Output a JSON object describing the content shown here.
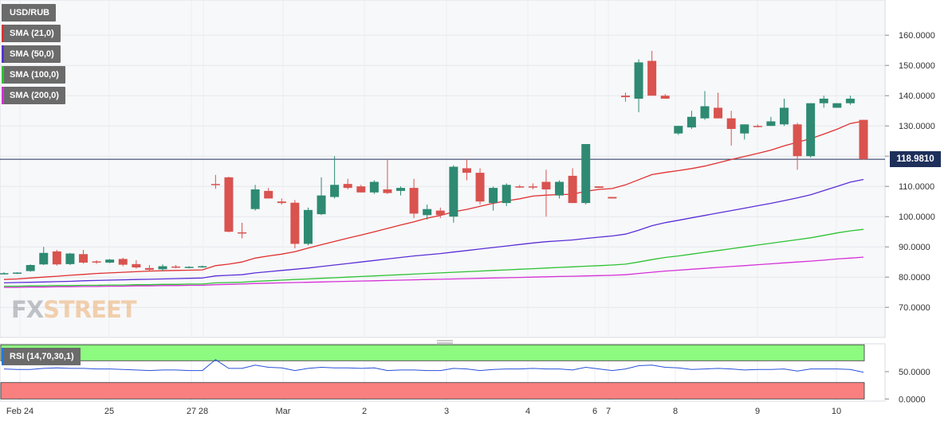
{
  "symbol": "USD/RUB",
  "legend": [
    {
      "label": "SMA (21,0)",
      "color": "#e03030"
    },
    {
      "label": "SMA (50,0)",
      "color": "#5a2fd6"
    },
    {
      "label": "SMA (100,0)",
      "color": "#2ec234"
    },
    {
      "label": "SMA (200,0)",
      "color": "#d630d6"
    }
  ],
  "last_price": "118.9810",
  "rsi_label": "RSI (14,70,30,1)",
  "watermark": {
    "fx": "FX",
    "street": "STREET"
  },
  "colors": {
    "up": "#2e8a72",
    "down": "#d9534f",
    "badge": "#1e2f5a",
    "rsi": "#2850d8",
    "overbought": "#8dfa80",
    "oversold": "#fa8080"
  },
  "chart_data": {
    "type": "candlestick",
    "symbol": "USD/RUB",
    "ylim": [
      62,
      170
    ],
    "y_ticks": [
      "160.0000",
      "150.0000",
      "140.0000",
      "130.0000",
      "120.0000",
      "110.0000",
      "100.0000",
      "90.0000",
      "80.0000",
      "70.0000"
    ],
    "x_labels": [
      "Feb 24",
      "25",
      "27",
      "28",
      "Mar",
      "2",
      "3",
      "4",
      "6",
      "7",
      "8",
      "9",
      "10"
    ],
    "ohlc": [
      [
        81.2,
        81.6,
        80.9,
        81.3
      ],
      [
        81.3,
        81.6,
        81.0,
        81.5
      ],
      [
        82.0,
        84.2,
        81.8,
        84.0
      ],
      [
        84.2,
        90.0,
        84.0,
        88.0
      ],
      [
        88.5,
        89.0,
        83.8,
        84.2
      ],
      [
        84.3,
        88.0,
        84.0,
        87.8
      ],
      [
        87.6,
        89.0,
        84.5,
        84.8
      ],
      [
        85.2,
        85.6,
        84.4,
        84.9
      ],
      [
        84.8,
        86.0,
        84.6,
        85.8
      ],
      [
        86.0,
        86.4,
        83.6,
        84.1
      ],
      [
        84.3,
        85.6,
        82.8,
        83.2
      ],
      [
        83.0,
        84.0,
        81.8,
        82.4
      ],
      [
        82.6,
        84.2,
        82.0,
        83.6
      ],
      [
        83.5,
        84.0,
        82.9,
        83.2
      ],
      [
        83.3,
        83.6,
        82.9,
        83.4
      ],
      [
        83.4,
        83.8,
        83.1,
        83.6
      ],
      [
        110.8,
        113.8,
        109.2,
        110.5
      ],
      [
        113.0,
        113.2,
        94.8,
        95.0
      ],
      [
        94.8,
        98.0,
        92.8,
        94.5
      ],
      [
        102.5,
        110.5,
        102.0,
        109.0
      ],
      [
        108.5,
        109.5,
        106.0,
        106.0
      ],
      [
        105.0,
        106.0,
        104.0,
        104.5
      ],
      [
        104.6,
        105.5,
        89.5,
        91.0
      ],
      [
        91.0,
        103.0,
        90.5,
        102.2
      ],
      [
        100.8,
        113.0,
        100.5,
        107.0
      ],
      [
        106.5,
        120.0,
        106.0,
        110.5
      ],
      [
        110.8,
        112.5,
        109.0,
        109.5
      ],
      [
        110.0,
        110.5,
        108.0,
        108.0
      ],
      [
        108.0,
        112.0,
        107.5,
        111.5
      ],
      [
        109.0,
        119.0,
        107.5,
        107.8
      ],
      [
        108.5,
        110.0,
        107.0,
        109.5
      ],
      [
        109.5,
        112.5,
        99.5,
        101.0
      ],
      [
        100.5,
        104.0,
        99.0,
        102.5
      ],
      [
        102.0,
        103.0,
        99.5,
        100.5
      ],
      [
        100.0,
        117.0,
        98.0,
        116.5
      ],
      [
        116.0,
        119.0,
        112.0,
        114.5
      ],
      [
        114.5,
        116.0,
        104.0,
        105.0
      ],
      [
        104.5,
        110.0,
        102.0,
        109.5
      ],
      [
        104.5,
        111.0,
        103.5,
        110.5
      ],
      [
        110.0,
        110.5,
        109.5,
        109.8
      ],
      [
        110.0,
        111.0,
        109.0,
        109.8
      ],
      [
        111.5,
        115.5,
        100.0,
        109.0
      ],
      [
        107.0,
        112.0,
        106.0,
        111.5
      ],
      [
        113.5,
        116.0,
        104.5,
        104.5
      ],
      [
        104.5,
        124.0,
        104.0,
        124.0
      ],
      [
        110.0,
        110.0,
        109.5,
        109.5
      ],
      [
        106.5,
        106.5,
        106.0,
        106.0
      ],
      [
        140.0,
        141.0,
        138.0,
        139.5
      ],
      [
        139.0,
        152.0,
        134.5,
        151.0
      ],
      [
        151.5,
        154.8,
        140.0,
        140.0
      ],
      [
        140.0,
        140.5,
        139.0,
        139.0
      ],
      [
        127.5,
        130.0,
        127.0,
        130.0
      ],
      [
        129.5,
        135.0,
        129.0,
        133.0
      ],
      [
        132.5,
        141.5,
        132.0,
        136.5
      ],
      [
        136.0,
        141.0,
        132.5,
        132.5
      ],
      [
        132.5,
        135.0,
        123.5,
        129.0
      ],
      [
        127.5,
        130.5,
        125.5,
        130.5
      ],
      [
        130.0,
        130.5,
        129.5,
        129.8
      ],
      [
        130.0,
        133.0,
        130.0,
        131.5
      ],
      [
        130.5,
        139.0,
        130.0,
        136.0
      ],
      [
        130.5,
        131.0,
        115.5,
        120.0
      ],
      [
        120.0,
        137.5,
        119.5,
        137.5
      ],
      [
        137.5,
        140.0,
        136.0,
        139.0
      ],
      [
        136.0,
        137.5,
        136.0,
        137.5
      ],
      [
        137.5,
        140.0,
        137.0,
        139.0
      ],
      [
        132.0,
        132.0,
        118.9,
        118.98
      ]
    ],
    "sma21": [
      79.2,
      79.4,
      79.7,
      80.0,
      80.3,
      80.6,
      80.9,
      81.2,
      81.4,
      81.6,
      81.8,
      82.0,
      82.1,
      82.2,
      82.3,
      82.4,
      83.8,
      84.3,
      85.0,
      86.3,
      87.0,
      87.6,
      88.4,
      89.6,
      90.7,
      91.8,
      92.9,
      93.9,
      95.0,
      96.1,
      97.2,
      98.3,
      99.5,
      100.4,
      101.6,
      102.4,
      103.4,
      104.4,
      105.2,
      105.9,
      106.8,
      107.1,
      107.3,
      107.4,
      108.4,
      109.0,
      109.3,
      110.5,
      112.2,
      113.9,
      114.6,
      115.2,
      115.9,
      116.7,
      117.8,
      118.9,
      119.9,
      120.9,
      122.0,
      123.4,
      124.6,
      125.8,
      127.3,
      128.9,
      130.8,
      131.6
    ],
    "sma50": [
      78.1,
      78.2,
      78.3,
      78.4,
      78.5,
      78.6,
      78.8,
      78.9,
      79.0,
      79.1,
      79.2,
      79.3,
      79.4,
      79.5,
      79.6,
      79.7,
      80.4,
      80.6,
      80.8,
      81.4,
      81.8,
      82.2,
      82.6,
      83.0,
      83.5,
      84.0,
      84.5,
      85.0,
      85.5,
      86.0,
      86.5,
      87.0,
      87.4,
      87.8,
      88.3,
      88.8,
      89.3,
      89.8,
      90.3,
      90.8,
      91.3,
      91.7,
      92.0,
      92.3,
      92.8,
      93.2,
      93.6,
      94.2,
      95.5,
      97.0,
      98.0,
      98.8,
      99.6,
      100.4,
      101.2,
      102.0,
      102.8,
      103.6,
      104.4,
      105.3,
      106.2,
      107.2,
      108.6,
      110.0,
      111.4,
      112.3
    ],
    "sma100": [
      77.0,
      77.0,
      77.1,
      77.1,
      77.2,
      77.2,
      77.3,
      77.3,
      77.4,
      77.4,
      77.5,
      77.5,
      77.6,
      77.6,
      77.7,
      77.7,
      78.1,
      78.2,
      78.3,
      78.6,
      78.8,
      79.0,
      79.2,
      79.4,
      79.6,
      79.8,
      80.0,
      80.2,
      80.4,
      80.6,
      80.8,
      81.0,
      81.2,
      81.4,
      81.6,
      81.8,
      82.0,
      82.2,
      82.4,
      82.6,
      82.8,
      83.0,
      83.2,
      83.4,
      83.6,
      83.8,
      84.0,
      84.3,
      85.0,
      85.8,
      86.5,
      87.0,
      87.6,
      88.2,
      88.8,
      89.4,
      90.0,
      90.6,
      91.2,
      91.8,
      92.4,
      93.0,
      93.8,
      94.6,
      95.3,
      95.8
    ],
    "sma200": [
      76.6,
      76.6,
      76.7,
      76.7,
      76.8,
      76.8,
      76.9,
      76.9,
      77.0,
      77.0,
      77.1,
      77.1,
      77.2,
      77.2,
      77.3,
      77.3,
      77.5,
      77.6,
      77.7,
      77.9,
      78.0,
      78.1,
      78.2,
      78.3,
      78.4,
      78.5,
      78.6,
      78.7,
      78.8,
      78.9,
      79.0,
      79.1,
      79.2,
      79.3,
      79.4,
      79.5,
      79.6,
      79.7,
      79.8,
      79.9,
      80.0,
      80.1,
      80.2,
      80.3,
      80.4,
      80.5,
      80.6,
      80.8,
      81.2,
      81.6,
      82.0,
      82.3,
      82.6,
      82.9,
      83.2,
      83.5,
      83.8,
      84.1,
      84.4,
      84.7,
      85.0,
      85.3,
      85.6,
      86.0,
      86.3,
      86.6
    ],
    "rsi": {
      "label": "RSI (14,70,30,1)",
      "ylim": [
        0,
        100
      ],
      "y_ticks": [
        "50.0000",
        "0.0000"
      ],
      "overbought": 70,
      "oversold": 30,
      "values": [
        55,
        54,
        54,
        56,
        57,
        56,
        56,
        55,
        55,
        54,
        53,
        52,
        53,
        53,
        52,
        52,
        72,
        56,
        56,
        62,
        58,
        57,
        52,
        56,
        58,
        57,
        57,
        56,
        57,
        52,
        53,
        53,
        52,
        52,
        56,
        55,
        52,
        54,
        55,
        55,
        56,
        55,
        55,
        53,
        58,
        55,
        52,
        55,
        61,
        62,
        58,
        57,
        54,
        55,
        56,
        55,
        53,
        54,
        54,
        55,
        51,
        55,
        55,
        55,
        54,
        49
      ]
    }
  }
}
